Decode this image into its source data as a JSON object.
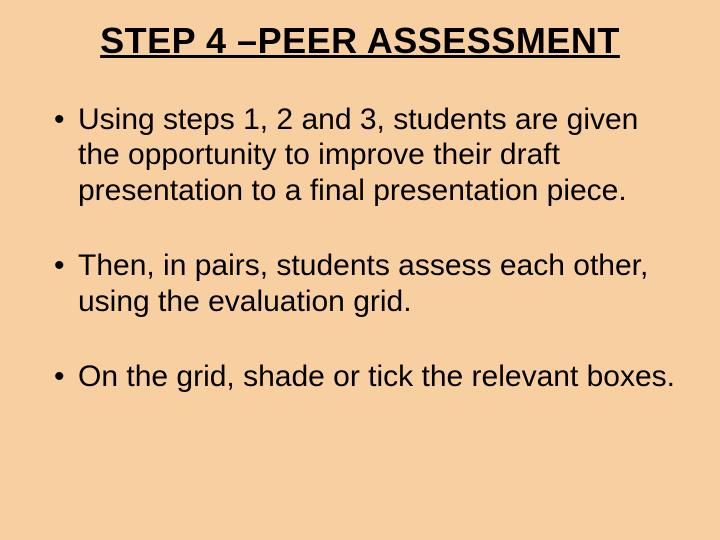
{
  "slide": {
    "background_color": "#f8cfa0",
    "text_color": "#000000",
    "title": "STEP 4 –PEER ASSESSMENT",
    "title_fontsize": 36,
    "body_fontsize": 30,
    "font_family": "Comic Sans MS",
    "bullets": [
      "Using steps 1, 2 and 3, students are given the opportunity to improve their draft presentation to a final presentation piece.",
      "Then, in pairs, students assess each other, using the evaluation grid.",
      "On the grid, shade or tick the relevant boxes."
    ]
  }
}
